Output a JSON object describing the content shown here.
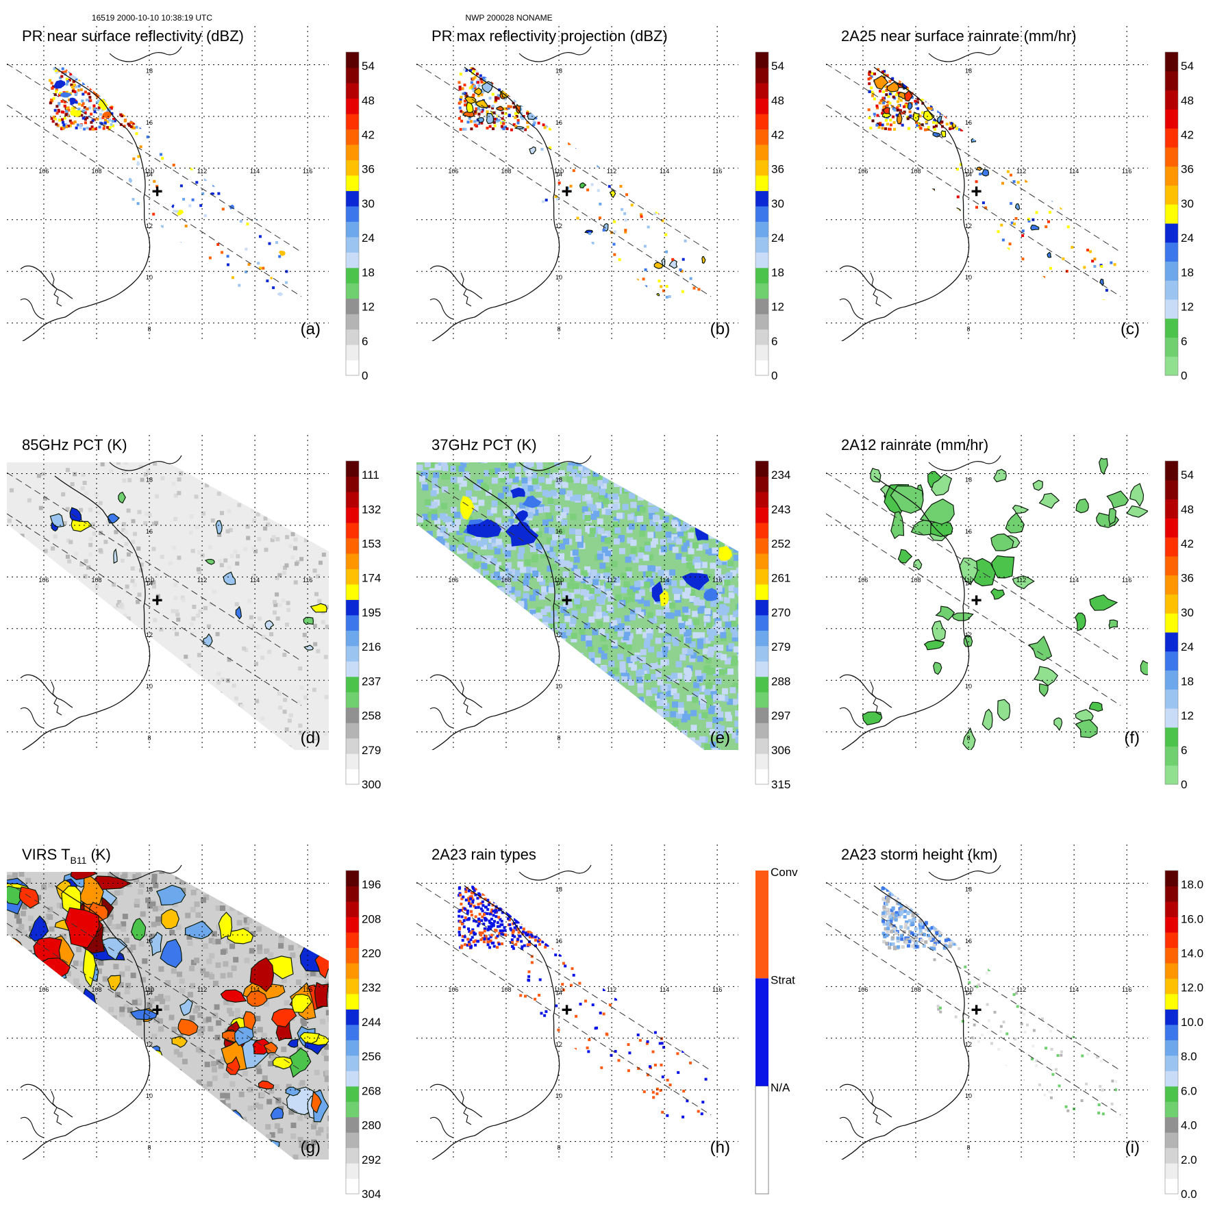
{
  "header": {
    "left": "16519 2000-10-10 10:38:19 UTC",
    "center": "NWP 200028 NONAME"
  },
  "map": {
    "lon_ticks": [
      "106",
      "108",
      "110",
      "112",
      "114",
      "116"
    ],
    "lat_ticks": [
      "18",
      "16",
      "14",
      "12",
      "10",
      "8"
    ],
    "lon_range": [
      104.6,
      116.8
    ],
    "lat_range": [
      7.3,
      19.5
    ],
    "center_marker": [
      110.3,
      13.1
    ]
  },
  "panels": [
    {
      "id": "a",
      "title": "PR near surface reflectivity (dBZ)",
      "label": "(a)",
      "swath": "pr",
      "field": "pr_reflectivity",
      "colorbar": {
        "ticks": [
          "0",
          "6",
          "12",
          "18",
          "24",
          "30",
          "36",
          "42",
          "48",
          "54"
        ],
        "colors": [
          "#ffffff",
          "#eeeeee",
          "#d4d4d4",
          "#b4b4b4",
          "#919191",
          "#70d070",
          "#4cc44c",
          "#c8dcf8",
          "#9cc4f0",
          "#6ea8ec",
          "#3c78ec",
          "#0a28d4",
          "#ffff00",
          "#ffc000",
          "#ff9600",
          "#ff6400",
          "#ff3200",
          "#e60000",
          "#b40000",
          "#820000",
          "#5a0000"
        ]
      }
    },
    {
      "id": "b",
      "title": "PR max reflectivity projection (dBZ)",
      "label": "(b)",
      "swath": "pr",
      "field": "pr_max",
      "colorbar": {
        "ticks": [
          "0",
          "6",
          "12",
          "18",
          "24",
          "30",
          "36",
          "42",
          "48",
          "54"
        ],
        "colors": [
          "#ffffff",
          "#eeeeee",
          "#d4d4d4",
          "#b4b4b4",
          "#919191",
          "#70d070",
          "#4cc44c",
          "#c8dcf8",
          "#9cc4f0",
          "#6ea8ec",
          "#3c78ec",
          "#0a28d4",
          "#ffff00",
          "#ffc000",
          "#ff9600",
          "#ff6400",
          "#ff3200",
          "#e60000",
          "#b40000",
          "#820000",
          "#5a0000"
        ]
      }
    },
    {
      "id": "c",
      "title": "2A25 near surface rainrate (mm/hr)",
      "label": "(c)",
      "swath": "pr",
      "field": "pr_rain",
      "colorbar": {
        "ticks": [
          "0",
          "6",
          "12",
          "18",
          "24",
          "30",
          "36",
          "42",
          "48",
          "54"
        ],
        "colors": [
          "#90e090",
          "#70d070",
          "#4cc44c",
          "#c8dcf8",
          "#9cc4f0",
          "#6ea8ec",
          "#3c78ec",
          "#0a28d4",
          "#ffff00",
          "#ffc000",
          "#ff9600",
          "#ff6400",
          "#ff3200",
          "#e60000",
          "#b40000",
          "#820000",
          "#5a0000"
        ]
      }
    },
    {
      "id": "d",
      "title": "85GHz PCT (K)",
      "label": "(d)",
      "swath": "tmi",
      "field": "pct85",
      "colorbar": {
        "ticks": [
          "300",
          "279",
          "258",
          "237",
          "216",
          "195",
          "174",
          "153",
          "132",
          "111"
        ],
        "colors": [
          "#ffffff",
          "#eeeeee",
          "#d4d4d4",
          "#b4b4b4",
          "#919191",
          "#70d070",
          "#4cc44c",
          "#c8dcf8",
          "#9cc4f0",
          "#6ea8ec",
          "#3c78ec",
          "#0a28d4",
          "#ffff00",
          "#ffc000",
          "#ff9600",
          "#ff6400",
          "#ff3200",
          "#e60000",
          "#b40000",
          "#820000",
          "#5a0000"
        ]
      }
    },
    {
      "id": "e",
      "title": "37GHz PCT (K)",
      "label": "(e)",
      "swath": "tmi",
      "field": "pct37",
      "colorbar": {
        "ticks": [
          "315",
          "306",
          "297",
          "288",
          "279",
          "270",
          "261",
          "252",
          "243",
          "234"
        ],
        "colors": [
          "#ffffff",
          "#eeeeee",
          "#d4d4d4",
          "#b4b4b4",
          "#919191",
          "#70d070",
          "#4cc44c",
          "#c8dcf8",
          "#9cc4f0",
          "#6ea8ec",
          "#3c78ec",
          "#0a28d4",
          "#ffff00",
          "#ffc000",
          "#ff9600",
          "#ff6400",
          "#ff3200",
          "#e60000",
          "#b40000",
          "#820000",
          "#5a0000"
        ]
      }
    },
    {
      "id": "f",
      "title": "2A12 rainrate (mm/hr)",
      "label": "(f)",
      "swath": "none",
      "field": "tmi_rain",
      "colorbar": {
        "ticks": [
          "0",
          "6",
          "12",
          "18",
          "24",
          "30",
          "36",
          "42",
          "48",
          "54"
        ],
        "colors": [
          "#90e090",
          "#70d070",
          "#4cc44c",
          "#c8dcf8",
          "#9cc4f0",
          "#6ea8ec",
          "#3c78ec",
          "#0a28d4",
          "#ffff00",
          "#ffc000",
          "#ff9600",
          "#ff6400",
          "#ff3200",
          "#e60000",
          "#b40000",
          "#820000",
          "#5a0000"
        ]
      }
    },
    {
      "id": "g",
      "title": "VIRS T",
      "title_sub": "B11",
      "title_tail": " (K)",
      "label": "(g)",
      "swath": "tmi",
      "field": "virs",
      "colorbar": {
        "ticks": [
          "304",
          "292",
          "280",
          "268",
          "256",
          "244",
          "232",
          "220",
          "208",
          "196"
        ],
        "colors": [
          "#ffffff",
          "#eeeeee",
          "#d4d4d4",
          "#b4b4b4",
          "#919191",
          "#70d070",
          "#4cc44c",
          "#c8dcf8",
          "#9cc4f0",
          "#6ea8ec",
          "#3c78ec",
          "#0a28d4",
          "#ffff00",
          "#ffc000",
          "#ff9600",
          "#ff6400",
          "#ff3200",
          "#e60000",
          "#b40000",
          "#820000",
          "#5a0000"
        ]
      }
    },
    {
      "id": "h",
      "title": "2A23 rain types",
      "label": "(h)",
      "swath": "pr",
      "field": "raintype",
      "colorbar": {
        "type": "categorical",
        "ticks": [
          "N/A",
          "Strat",
          "Conv"
        ],
        "colors": [
          "#ffffff",
          "#0a14e6",
          "#ff5a14"
        ]
      }
    },
    {
      "id": "i",
      "title": "2A23 storm height (km)",
      "label": "(i)",
      "swath": "pr",
      "field": "height",
      "colorbar": {
        "ticks": [
          "0.0",
          "2.0",
          "4.0",
          "6.0",
          "8.0",
          "10.0",
          "12.0",
          "14.0",
          "16.0",
          "18.0"
        ],
        "colors": [
          "#ffffff",
          "#eeeeee",
          "#d4d4d4",
          "#b4b4b4",
          "#919191",
          "#70d070",
          "#4cc44c",
          "#c8dcf8",
          "#9cc4f0",
          "#6ea8ec",
          "#3c78ec",
          "#0a28d4",
          "#ffff00",
          "#ffc000",
          "#ff9600",
          "#ff6400",
          "#ff3200",
          "#e60000",
          "#b40000",
          "#820000",
          "#5a0000"
        ]
      }
    }
  ]
}
